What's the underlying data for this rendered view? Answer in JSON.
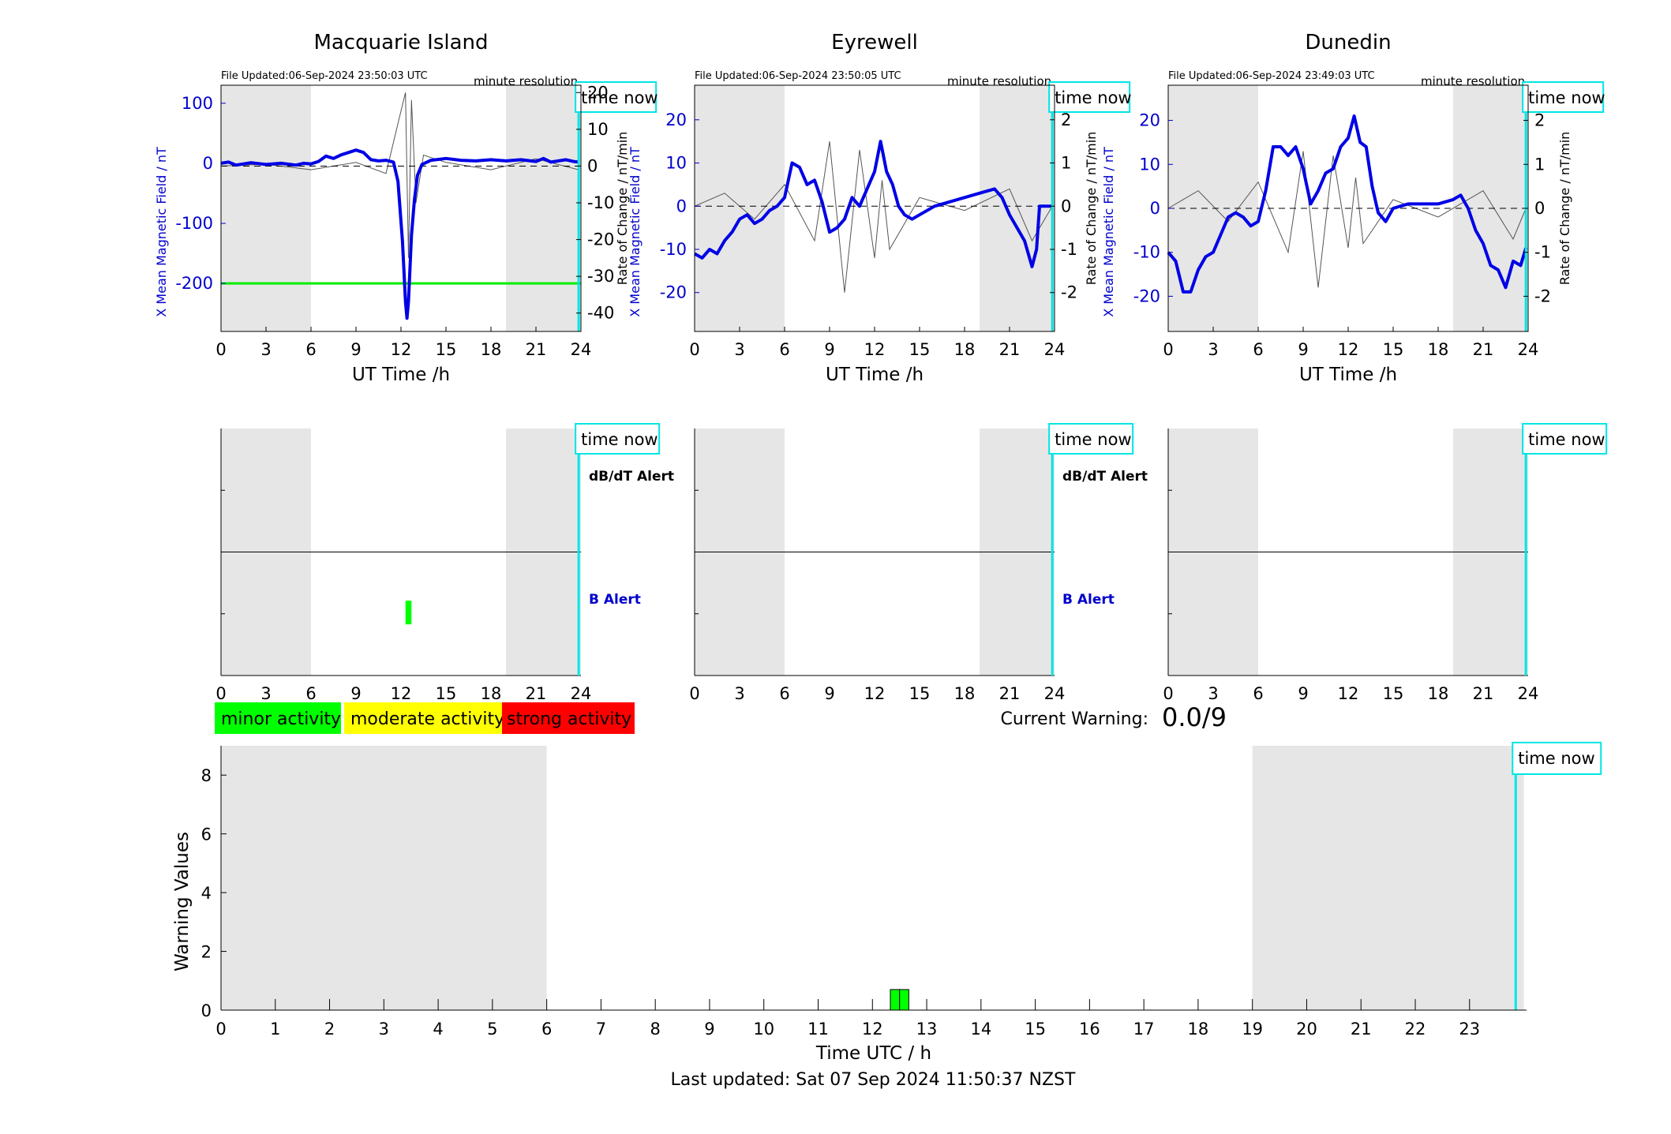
{
  "footer": "Last updated: Sat 07 Sep 2024 11:50:37 NZST",
  "colors": {
    "field_line": "#0000e6",
    "rate_line": "#555555",
    "night_shade": "#e6e6e6",
    "time_now": "#00e5e5",
    "threshold": "#00ee00",
    "minor": "#00ff00",
    "moderate": "#ffff00",
    "strong": "#ff0000",
    "axis_blue": "#0000cc"
  },
  "labels": {
    "time_now": "time now",
    "minute_resolution": "minute resolution",
    "ut_time_label": "UT Time /h",
    "left_ylabel": "X Mean Magnetic Field / nT",
    "right_ylabel": "Rate of Change / nT/min",
    "db_alert": "dB/dT Alert",
    "b_alert": "B Alert",
    "current_warning_label": "Current Warning:",
    "current_warning_value": "0.0/9"
  },
  "legend": [
    "minor activity",
    "moderate activity",
    "strong activity"
  ],
  "stations": [
    {
      "title": "Macquarie Island",
      "file_updated": "File Updated:06-Sep-2024 23:50:03 UTC",
      "xticks": [
        "0",
        "3",
        "6",
        "9",
        "12",
        "15",
        "18",
        "21",
        "24"
      ],
      "yticks_left": [
        "100",
        "0",
        "-100",
        "-200"
      ],
      "yticks_right": [
        "20",
        "10",
        "0",
        "-10",
        "-20",
        "-30",
        "-40"
      ],
      "show_alert_labels": true,
      "b_alert_bar": {
        "start_h": 12.3,
        "end_h": 12.7,
        "level": 1
      }
    },
    {
      "title": "Eyrewell",
      "file_updated": "File Updated:06-Sep-2024 23:50:05 UTC",
      "xticks": [
        "0",
        "3",
        "6",
        "9",
        "12",
        "15",
        "18",
        "21",
        "24"
      ],
      "yticks_left": [
        "20",
        "10",
        "0",
        "-10",
        "-20"
      ],
      "yticks_right": [
        "2",
        "1",
        "0",
        "-1",
        "-2"
      ],
      "show_alert_labels": true,
      "b_alert_bar": null
    },
    {
      "title": "Dunedin",
      "file_updated": "File Updated:06-Sep-2024 23:49:03 UTC",
      "xticks": [
        "0",
        "3",
        "6",
        "9",
        "12",
        "15",
        "18",
        "21",
        "24"
      ],
      "yticks_left": [
        "20",
        "10",
        "0",
        "-10",
        "-20"
      ],
      "yticks_right": [
        "2",
        "1",
        "0",
        "-1",
        "-2"
      ],
      "show_alert_labels": false,
      "b_alert_bar": null
    }
  ],
  "chart_data": [
    {
      "type": "line",
      "title": "Macquarie Island",
      "xlabel": "UT Time /h",
      "ylabel": "X Mean Magnetic Field / nT",
      "y2label": "Rate of Change / nT/min",
      "xlim": [
        0,
        24
      ],
      "ylim": [
        -280,
        130
      ],
      "y2lim": [
        -45,
        22
      ],
      "night_shading_h": [
        [
          0,
          6
        ],
        [
          19,
          24
        ]
      ],
      "time_now_h": 23.85,
      "threshold_nT": -200,
      "series": [
        {
          "values_kind": "field",
          "points": [
            [
              0,
              0
            ],
            [
              0.5,
              2
            ],
            [
              1,
              -3
            ],
            [
              2,
              1
            ],
            [
              3,
              -2
            ],
            [
              4,
              0
            ],
            [
              5,
              -3
            ],
            [
              5.5,
              0
            ],
            [
              6,
              -1
            ],
            [
              6.5,
              3
            ],
            [
              7,
              12
            ],
            [
              7.5,
              8
            ],
            [
              8,
              14
            ],
            [
              9,
              22
            ],
            [
              9.5,
              18
            ],
            [
              10,
              6
            ],
            [
              10.5,
              4
            ],
            [
              11,
              5
            ],
            [
              11.5,
              2
            ],
            [
              11.8,
              -30
            ],
            [
              12.1,
              -130
            ],
            [
              12.3,
              -230
            ],
            [
              12.4,
              -258
            ],
            [
              12.5,
              -230
            ],
            [
              12.7,
              -120
            ],
            [
              12.9,
              -60
            ],
            [
              13.1,
              -20
            ],
            [
              13.4,
              -2
            ],
            [
              14,
              5
            ],
            [
              15,
              8
            ],
            [
              16,
              5
            ],
            [
              17,
              4
            ],
            [
              18,
              6
            ],
            [
              19,
              4
            ],
            [
              20,
              6
            ],
            [
              21,
              3
            ],
            [
              21.5,
              8
            ],
            [
              22,
              2
            ],
            [
              23,
              6
            ],
            [
              23.5,
              3
            ],
            [
              23.85,
              2
            ]
          ]
        },
        {
          "values_kind": "rate",
          "points": [
            [
              0,
              0
            ],
            [
              3,
              0.5
            ],
            [
              6,
              -1
            ],
            [
              9,
              1
            ],
            [
              11,
              -2
            ],
            [
              12,
              15
            ],
            [
              12.3,
              20
            ],
            [
              12.5,
              -25
            ],
            [
              12.7,
              18
            ],
            [
              13,
              -10
            ],
            [
              13.5,
              3
            ],
            [
              15,
              1
            ],
            [
              18,
              -1
            ],
            [
              21,
              2
            ],
            [
              23.85,
              -1
            ]
          ]
        }
      ]
    },
    {
      "type": "line",
      "title": "Eyrewell",
      "xlabel": "UT Time /h",
      "ylabel": "X Mean Magnetic Field / nT",
      "y2label": "Rate of Change / nT/min",
      "xlim": [
        0,
        24
      ],
      "ylim": [
        -29,
        28
      ],
      "y2lim": [
        -2.9,
        2.8
      ],
      "night_shading_h": [
        [
          0,
          6
        ],
        [
          19,
          24
        ]
      ],
      "time_now_h": 23.85,
      "series": [
        {
          "values_kind": "field",
          "points": [
            [
              0,
              -11
            ],
            [
              0.5,
              -12
            ],
            [
              1,
              -10
            ],
            [
              1.5,
              -11
            ],
            [
              2,
              -8
            ],
            [
              2.5,
              -6
            ],
            [
              3,
              -3
            ],
            [
              3.5,
              -2
            ],
            [
              4,
              -4
            ],
            [
              4.5,
              -3
            ],
            [
              5,
              -1
            ],
            [
              5.5,
              0
            ],
            [
              6,
              2
            ],
            [
              6.5,
              10
            ],
            [
              7,
              9
            ],
            [
              7.5,
              5
            ],
            [
              8,
              6
            ],
            [
              8.5,
              1
            ],
            [
              9,
              -6
            ],
            [
              9.5,
              -5
            ],
            [
              10,
              -3
            ],
            [
              10.5,
              2
            ],
            [
              11,
              0
            ],
            [
              11.5,
              4
            ],
            [
              12,
              8
            ],
            [
              12.4,
              15
            ],
            [
              12.8,
              8
            ],
            [
              13.2,
              5
            ],
            [
              13.6,
              0
            ],
            [
              14,
              -2
            ],
            [
              14.5,
              -3
            ],
            [
              15,
              -2
            ],
            [
              16,
              0
            ],
            [
              17,
              1
            ],
            [
              18,
              2
            ],
            [
              19,
              3
            ],
            [
              20,
              4
            ],
            [
              20.5,
              2
            ],
            [
              21,
              -2
            ],
            [
              21.5,
              -5
            ],
            [
              22,
              -8
            ],
            [
              22.5,
              -14
            ],
            [
              22.8,
              -10
            ],
            [
              23,
              0
            ],
            [
              23.85,
              0
            ]
          ]
        },
        {
          "values_kind": "rate",
          "points": [
            [
              0,
              0
            ],
            [
              2,
              0.3
            ],
            [
              4,
              -0.3
            ],
            [
              6,
              0.5
            ],
            [
              8,
              -0.8
            ],
            [
              9,
              1.5
            ],
            [
              10,
              -2.0
            ],
            [
              11,
              1.3
            ],
            [
              12,
              -1.2
            ],
            [
              12.5,
              0.6
            ],
            [
              13,
              -1.0
            ],
            [
              15,
              0.2
            ],
            [
              18,
              -0.1
            ],
            [
              21,
              0.4
            ],
            [
              22.5,
              -0.8
            ],
            [
              23.85,
              0
            ]
          ]
        }
      ]
    },
    {
      "type": "line",
      "title": "Dunedin",
      "xlabel": "UT Time /h",
      "ylabel": "X Mean Magnetic Field / nT",
      "y2label": "Rate of Change / nT/min",
      "xlim": [
        0,
        24
      ],
      "ylim": [
        -28,
        28
      ],
      "y2lim": [
        -2.8,
        2.8
      ],
      "night_shading_h": [
        [
          0,
          6
        ],
        [
          19,
          24
        ]
      ],
      "time_now_h": 23.85,
      "series": [
        {
          "values_kind": "field",
          "points": [
            [
              0,
              -10
            ],
            [
              0.5,
              -12
            ],
            [
              1,
              -19
            ],
            [
              1.5,
              -19
            ],
            [
              2,
              -14
            ],
            [
              2.5,
              -11
            ],
            [
              3,
              -10
            ],
            [
              3.5,
              -6
            ],
            [
              4,
              -2
            ],
            [
              4.5,
              -1
            ],
            [
              5,
              -2
            ],
            [
              5.5,
              -4
            ],
            [
              6,
              -3
            ],
            [
              6.5,
              4
            ],
            [
              7,
              14
            ],
            [
              7.5,
              14
            ],
            [
              8,
              12
            ],
            [
              8.5,
              14
            ],
            [
              9,
              9
            ],
            [
              9.5,
              1
            ],
            [
              10,
              4
            ],
            [
              10.5,
              8
            ],
            [
              11,
              9
            ],
            [
              11.5,
              14
            ],
            [
              12,
              16
            ],
            [
              12.4,
              21
            ],
            [
              12.8,
              15
            ],
            [
              13.2,
              14
            ],
            [
              13.6,
              5
            ],
            [
              14,
              -1
            ],
            [
              14.5,
              -3
            ],
            [
              15,
              0
            ],
            [
              16,
              1
            ],
            [
              17,
              1
            ],
            [
              18,
              1
            ],
            [
              19,
              2
            ],
            [
              19.5,
              3
            ],
            [
              20,
              0
            ],
            [
              20.5,
              -5
            ],
            [
              21,
              -8
            ],
            [
              21.5,
              -13
            ],
            [
              22,
              -14
            ],
            [
              22.5,
              -18
            ],
            [
              23,
              -12
            ],
            [
              23.5,
              -13
            ],
            [
              23.85,
              -9
            ]
          ]
        },
        {
          "values_kind": "rate",
          "points": [
            [
              0,
              0
            ],
            [
              2,
              0.4
            ],
            [
              4,
              -0.3
            ],
            [
              6,
              0.6
            ],
            [
              8,
              -1.0
            ],
            [
              9,
              1.3
            ],
            [
              10,
              -1.8
            ],
            [
              11,
              1.2
            ],
            [
              12,
              -0.9
            ],
            [
              12.5,
              0.7
            ],
            [
              13,
              -0.8
            ],
            [
              15,
              0.2
            ],
            [
              18,
              -0.2
            ],
            [
              21,
              0.4
            ],
            [
              23,
              -0.7
            ],
            [
              23.85,
              0
            ]
          ]
        }
      ]
    },
    {
      "type": "bar",
      "title": "",
      "xlabel": "Time UTC / h",
      "ylabel": "Warning Values",
      "xlim": [
        0,
        24
      ],
      "ylim": [
        0,
        9
      ],
      "yticks": [
        "0",
        "2",
        "4",
        "6",
        "8"
      ],
      "xticks": [
        "0",
        "1",
        "2",
        "3",
        "4",
        "5",
        "6",
        "7",
        "8",
        "9",
        "10",
        "11",
        "12",
        "13",
        "14",
        "15",
        "16",
        "17",
        "18",
        "19",
        "20",
        "21",
        "22",
        "23"
      ],
      "night_shading_h": [
        [
          0,
          6
        ],
        [
          19,
          24
        ]
      ],
      "time_now_h": 23.85,
      "bars": [
        {
          "start_h": 12.33,
          "end_h": 12.5,
          "value": 0.7,
          "color": "#00ff00"
        },
        {
          "start_h": 12.5,
          "end_h": 12.67,
          "value": 0.7,
          "color": "#00ff00"
        }
      ]
    }
  ]
}
